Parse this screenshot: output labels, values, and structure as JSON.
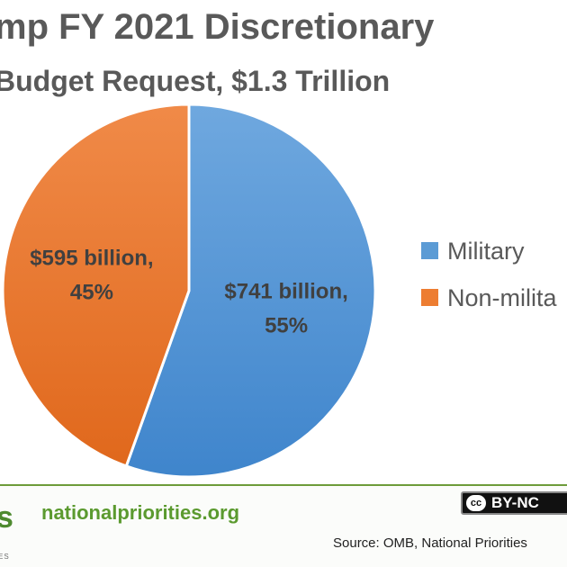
{
  "chart_data": {
    "type": "pie",
    "title": "mp FY 2021 Discretionary",
    "subtitle": "Budget Request, $1.3 Trillion",
    "slices": [
      {
        "name": "Military",
        "value": 741,
        "percent": 55,
        "label_line1": "$741 billion,",
        "label_line2": "55%",
        "color": "#5b9bd5"
      },
      {
        "name": "Non-military",
        "value": 595,
        "percent": 45,
        "label_line1": "$595 billion,",
        "label_line2": "45%",
        "color": "#ed7d31"
      }
    ],
    "legend": {
      "placement": "right",
      "items": [
        "Military",
        "Non-milita"
      ]
    }
  },
  "footer": {
    "logo_text": "s",
    "logo_tagline": "ES",
    "site": "nationalpriorities.org",
    "license_icon": "cc",
    "license_text": "BY-NC",
    "source": "Source: OMB, National Priorities"
  },
  "colors": {
    "military": "#5b9bd5",
    "non_military": "#ed7d31",
    "title": "#595959",
    "brand_green": "#5b9a2f"
  }
}
